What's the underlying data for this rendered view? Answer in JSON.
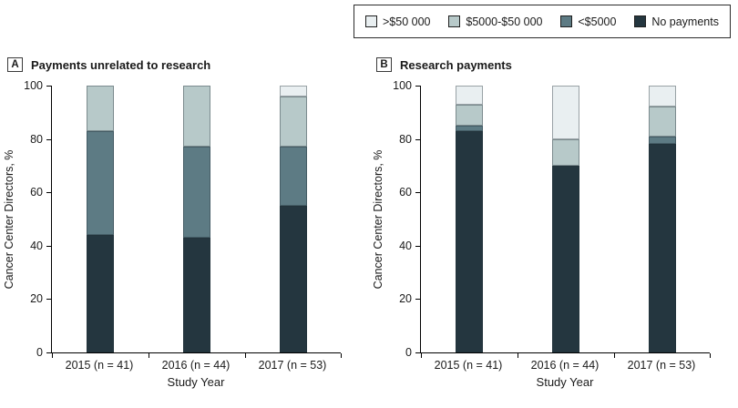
{
  "legend": {
    "items": [
      {
        "label": ">$50 000",
        "color": "#e9eff1"
      },
      {
        "label": "$5000-$50 000",
        "color": "#b7c9c9"
      },
      {
        "label": "<$5000",
        "color": "#5d7b84"
      },
      {
        "label": "No payments",
        "color": "#24363f"
      }
    ]
  },
  "panels": [
    {
      "tag": "A",
      "title": "Payments unrelated to research"
    },
    {
      "tag": "B",
      "title": "Research payments"
    }
  ],
  "chart_data": [
    {
      "type": "bar",
      "stacked": true,
      "panel": "A",
      "title": "Payments unrelated to research",
      "categories": [
        "2015 (n = 41)",
        "2016 (n = 44)",
        "2017 (n = 53)"
      ],
      "series": [
        {
          "name": "No payments",
          "color": "#24363f",
          "values": [
            44,
            43,
            55
          ]
        },
        {
          "name": "<$5000",
          "color": "#5d7b84",
          "values": [
            39,
            34,
            22
          ]
        },
        {
          "name": "$5000-$50 000",
          "color": "#b7c9c9",
          "values": [
            17,
            23,
            19
          ]
        },
        {
          "name": ">$50 000",
          "color": "#e9eff1",
          "values": [
            0,
            0,
            4
          ]
        }
      ],
      "xlabel": "Study Year",
      "ylabel": "Cancer Center Directors, %",
      "ylim": [
        0,
        100
      ],
      "yticks": [
        0,
        20,
        40,
        60,
        80,
        100
      ],
      "grid": false,
      "legend_position": "top-right"
    },
    {
      "type": "bar",
      "stacked": true,
      "panel": "B",
      "title": "Research payments",
      "categories": [
        "2015 (n = 41)",
        "2016 (n = 44)",
        "2017 (n = 53)"
      ],
      "series": [
        {
          "name": "No payments",
          "color": "#24363f",
          "values": [
            83,
            70,
            78
          ]
        },
        {
          "name": "<$5000",
          "color": "#5d7b84",
          "values": [
            2,
            0,
            3
          ]
        },
        {
          "name": "$5000-$50 000",
          "color": "#b7c9c9",
          "values": [
            8,
            10,
            11
          ]
        },
        {
          "name": ">$50 000",
          "color": "#e9eff1",
          "values": [
            7,
            20,
            8
          ]
        }
      ],
      "xlabel": "Study Year",
      "ylabel": "Cancer Center Directors, %",
      "ylim": [
        0,
        100
      ],
      "yticks": [
        0,
        20,
        40,
        60,
        80,
        100
      ],
      "grid": false,
      "legend_position": "top-right"
    }
  ]
}
